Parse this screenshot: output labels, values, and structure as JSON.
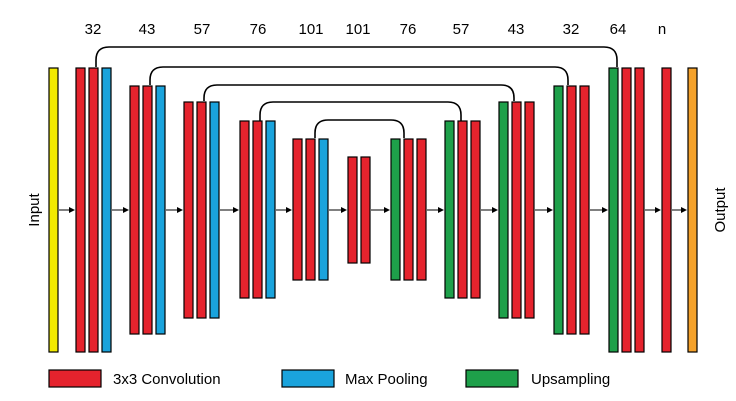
{
  "colors": {
    "input": "#f2ea00",
    "output": "#f4a12a",
    "conv": "#e5232d",
    "pool": "#1aa3dc",
    "upsample": "#1ea04a",
    "line": "#000000"
  },
  "top_labels": [
    "32",
    "43",
    "57",
    "76",
    "101",
    "101",
    "76",
    "57",
    "43",
    "32",
    "64",
    "n"
  ],
  "side_labels": {
    "input": "Input",
    "output": "Output"
  },
  "legend": [
    {
      "key": "conv",
      "label": "3x3 Convolution"
    },
    {
      "key": "pool",
      "label": "Max Pooling"
    },
    {
      "key": "upsample",
      "label": "Upsampling"
    }
  ]
}
